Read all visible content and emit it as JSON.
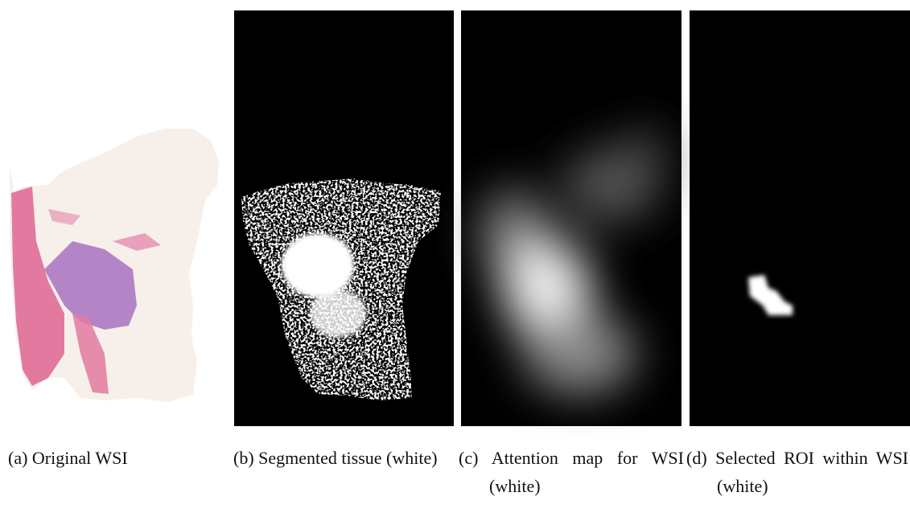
{
  "figure": {
    "panels": [
      {
        "label": "(a)",
        "caption": "Original WSI"
      },
      {
        "label": "(b)",
        "caption": "Segmented tissue (white)"
      },
      {
        "label": "(c)",
        "caption": "Attention map for WSI (white)"
      },
      {
        "label": "(d)",
        "caption": "Selected ROI within WSI (white)"
      }
    ]
  }
}
